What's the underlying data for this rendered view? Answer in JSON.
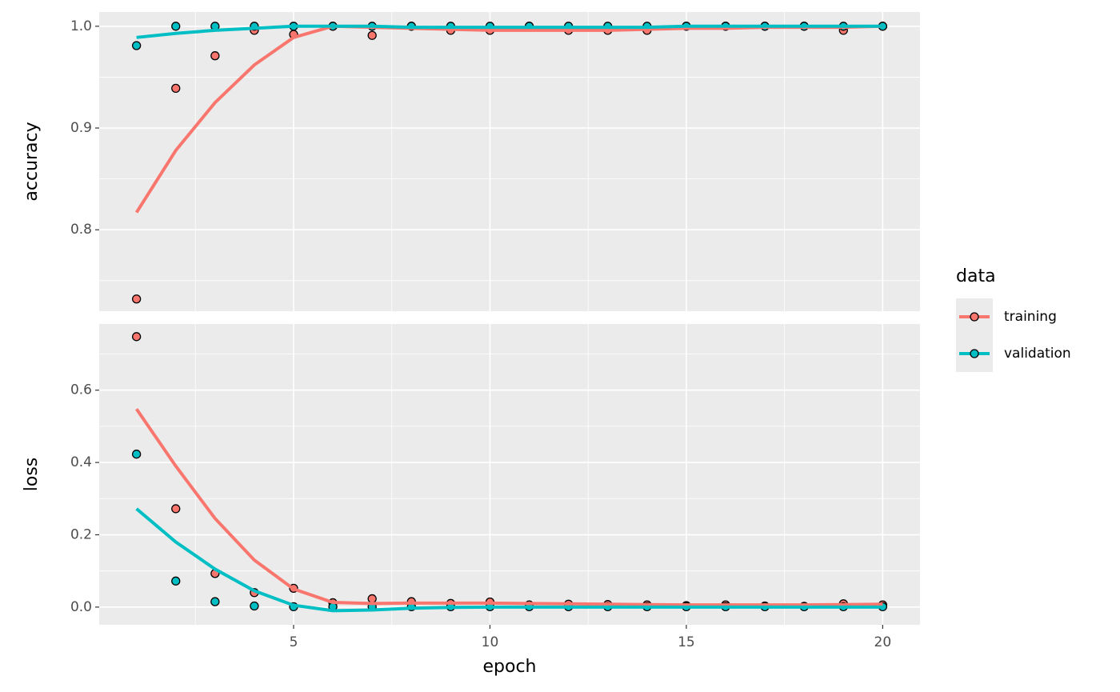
{
  "chart_data": [
    {
      "type": "scatter-smooth",
      "ylabel": "accuracy",
      "legend_title": "data",
      "legend": "right",
      "x": [
        1,
        2,
        3,
        4,
        5,
        6,
        7,
        8,
        9,
        10,
        11,
        12,
        13,
        14,
        15,
        16,
        17,
        18,
        19,
        20
      ],
      "xlim": [
        0.05,
        20.95
      ],
      "xticks": [
        5,
        10,
        15,
        20
      ],
      "minor_xticks": [
        2.5,
        7.5,
        12.5,
        17.5
      ],
      "ylim": [
        0.72,
        1.014
      ],
      "yticks": [
        {
          "value": 0.8,
          "label": "0.8"
        },
        {
          "value": 0.9,
          "label": "0.9"
        },
        {
          "value": 1,
          "label": "1.0"
        }
      ],
      "minor_yticks": [
        0.75,
        0.85,
        0.95
      ],
      "grid": true,
      "series": [
        {
          "name": "training",
          "color": "#F8766D",
          "values": [
            0.732,
            0.939,
            0.971,
            0.996,
            0.992,
            1.0,
            0.991,
            1.0,
            0.996,
            0.996,
            1.0,
            0.996,
            0.996,
            0.996,
            1.0,
            1.0,
            1.0,
            1.0,
            0.996,
            1.0
          ],
          "smooth": [
            0.817,
            0.878,
            0.925,
            0.962,
            0.989,
            1.0,
            0.999,
            0.998,
            0.997,
            0.996,
            0.996,
            0.996,
            0.996,
            0.997,
            0.998,
            0.998,
            0.999,
            0.999,
            0.999,
            1.0
          ]
        },
        {
          "name": "validation",
          "color": "#00BFC4",
          "values": [
            0.981,
            1.0,
            1.0,
            1.0,
            1.0,
            1.0,
            1.0,
            1.0,
            1.0,
            1.0,
            1.0,
            1.0,
            1.0,
            1.0,
            1.0,
            1.0,
            1.0,
            1.0,
            1.0,
            1.0
          ],
          "smooth": [
            0.989,
            0.993,
            0.996,
            0.998,
            1.0,
            1.0,
            1.0,
            0.999,
            0.999,
            0.999,
            0.999,
            0.999,
            0.999,
            0.999,
            1.0,
            1.0,
            1.0,
            1.0,
            1.0,
            1.0
          ]
        }
      ]
    },
    {
      "type": "scatter-smooth",
      "ylabel": "loss",
      "xlabel": "epoch",
      "x": [
        1,
        2,
        3,
        4,
        5,
        6,
        7,
        8,
        9,
        10,
        11,
        12,
        13,
        14,
        15,
        16,
        17,
        18,
        19,
        20
      ],
      "xlim": [
        0.05,
        20.95
      ],
      "xticks": [
        5,
        10,
        15,
        20
      ],
      "minor_xticks": [
        2.5,
        7.5,
        12.5,
        17.5
      ],
      "ylim": [
        -0.049,
        0.783
      ],
      "yticks": [
        {
          "value": 0,
          "label": "0.0"
        },
        0.2,
        0.4,
        0.6
      ],
      "minor_yticks": [
        0.1,
        0.3,
        0.5,
        0.7
      ],
      "grid": true,
      "series": [
        {
          "color": "#F8766D",
          "values": [
            0.748,
            0.272,
            0.093,
            0.04,
            0.052,
            0.012,
            0.023,
            0.015,
            0.01,
            0.014,
            0.006,
            0.008,
            0.007,
            0.006,
            0.004,
            0.006,
            0.003,
            0.002,
            0.009,
            0.006
          ],
          "smooth": [
            0.548,
            0.39,
            0.245,
            0.13,
            0.05,
            0.013,
            0.01,
            0.011,
            0.011,
            0.011,
            0.01,
            0.009,
            0.008,
            0.007,
            0.006,
            0.006,
            0.006,
            0.006,
            0.007,
            0.008
          ]
        },
        {
          "color": "#00BFC4",
          "values": [
            0.423,
            0.072,
            0.015,
            0.003,
            0.001,
            0.001,
            0.001,
            0.001,
            0.001,
            0.001,
            0.001,
            0.001,
            0.001,
            0.001,
            0.001,
            0.001,
            0.001,
            0.001,
            0.001,
            0.001
          ],
          "smooth": [
            0.272,
            0.18,
            0.105,
            0.045,
            0.005,
            -0.01,
            -0.008,
            -0.003,
            -0.001,
            0,
            0,
            0,
            0,
            0,
            0,
            0,
            0,
            0,
            0,
            0
          ]
        }
      ]
    }
  ]
}
